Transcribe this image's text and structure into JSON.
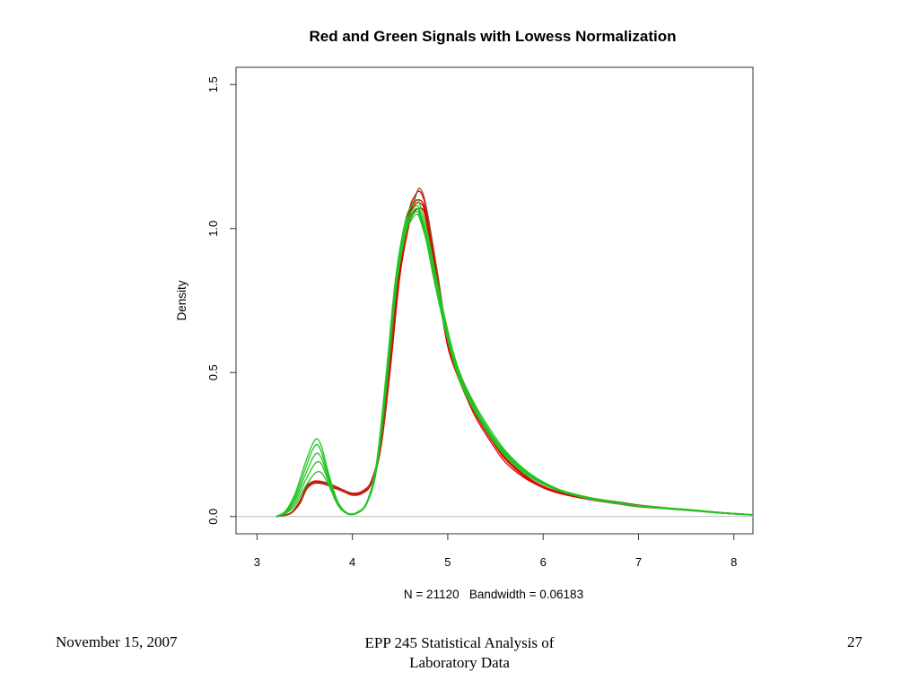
{
  "chart_data": {
    "type": "line",
    "title": "Red and Green Signals with Lowess Normalization",
    "xlabel": "N = 21120   Bandwidth = 0.06183",
    "ylabel": "Density",
    "xlim": [
      2.78,
      8.2
    ],
    "ylim": [
      -0.06,
      1.56
    ],
    "x_ticks": [
      "3",
      "4",
      "5",
      "6",
      "7",
      "8"
    ],
    "y_ticks": [
      "0.0",
      "0.5",
      "1.0",
      "1.5"
    ],
    "grid": false,
    "baseline": 0,
    "colors": {
      "red": "#e00000",
      "green": "#22c422",
      "brown": "#8a4a1e",
      "baseline": "#bdbdbd"
    },
    "series": [
      {
        "color": "red",
        "x": [
          3.2,
          3.35,
          3.45,
          3.52,
          3.6,
          3.7,
          3.8,
          3.9,
          4.0,
          4.1,
          4.2,
          4.3,
          4.4,
          4.5,
          4.6,
          4.65,
          4.7,
          4.75,
          4.8,
          4.9,
          5.0,
          5.1,
          5.2,
          5.3,
          5.45,
          5.6,
          5.8,
          6.0,
          6.2,
          6.5,
          6.8,
          7.0,
          7.3,
          7.6,
          7.9,
          8.2
        ],
        "y": [
          0.0,
          0.01,
          0.05,
          0.1,
          0.12,
          0.118,
          0.105,
          0.09,
          0.078,
          0.085,
          0.12,
          0.25,
          0.55,
          0.88,
          1.05,
          1.09,
          1.1,
          1.08,
          1.0,
          0.8,
          0.6,
          0.5,
          0.42,
          0.35,
          0.27,
          0.2,
          0.14,
          0.1,
          0.08,
          0.06,
          0.045,
          0.035,
          0.028,
          0.02,
          0.012,
          0.005
        ]
      },
      {
        "color": "red",
        "x": [
          3.2,
          3.35,
          3.45,
          3.52,
          3.6,
          3.7,
          3.8,
          3.9,
          4.0,
          4.1,
          4.2,
          4.3,
          4.4,
          4.5,
          4.6,
          4.65,
          4.7,
          4.75,
          4.8,
          4.9,
          5.0,
          5.1,
          5.2,
          5.3,
          5.45,
          5.6,
          5.8,
          6.0,
          6.2,
          6.5,
          6.8,
          7.0,
          7.3,
          7.6,
          7.9,
          8.2
        ],
        "y": [
          0.0,
          0.01,
          0.045,
          0.095,
          0.115,
          0.113,
          0.1,
          0.087,
          0.074,
          0.08,
          0.115,
          0.24,
          0.52,
          0.84,
          1.02,
          1.06,
          1.07,
          1.06,
          0.98,
          0.78,
          0.59,
          0.49,
          0.41,
          0.34,
          0.26,
          0.19,
          0.135,
          0.1,
          0.078,
          0.058,
          0.043,
          0.034,
          0.027,
          0.019,
          0.011,
          0.005
        ]
      },
      {
        "color": "red",
        "x": [
          3.2,
          3.35,
          3.45,
          3.52,
          3.6,
          3.7,
          3.8,
          3.9,
          4.0,
          4.1,
          4.2,
          4.3,
          4.4,
          4.5,
          4.6,
          4.65,
          4.7,
          4.75,
          4.8,
          4.9,
          5.0,
          5.1,
          5.2,
          5.3,
          5.45,
          5.6,
          5.8,
          6.0,
          6.2,
          6.5,
          6.8,
          7.0,
          7.3,
          7.6,
          7.9,
          8.2
        ],
        "y": [
          0.0,
          0.012,
          0.055,
          0.105,
          0.123,
          0.12,
          0.108,
          0.093,
          0.081,
          0.088,
          0.125,
          0.26,
          0.57,
          0.9,
          1.07,
          1.11,
          1.13,
          1.1,
          1.02,
          0.82,
          0.61,
          0.51,
          0.43,
          0.36,
          0.28,
          0.205,
          0.145,
          0.105,
          0.082,
          0.061,
          0.046,
          0.036,
          0.029,
          0.021,
          0.013,
          0.006
        ]
      },
      {
        "color": "red",
        "x": [
          3.2,
          3.35,
          3.45,
          3.52,
          3.6,
          3.7,
          3.8,
          3.9,
          4.0,
          4.1,
          4.2,
          4.3,
          4.4,
          4.5,
          4.6,
          4.65,
          4.7,
          4.75,
          4.8,
          4.9,
          5.0,
          5.1,
          5.2,
          5.3,
          5.45,
          5.6,
          5.8,
          6.0,
          6.2,
          6.5,
          6.8,
          7.0,
          7.3,
          7.6,
          7.9,
          8.2
        ],
        "y": [
          0.0,
          0.011,
          0.05,
          0.1,
          0.118,
          0.116,
          0.103,
          0.089,
          0.077,
          0.083,
          0.118,
          0.245,
          0.54,
          0.86,
          1.04,
          1.08,
          1.09,
          1.07,
          0.99,
          0.79,
          0.6,
          0.5,
          0.42,
          0.35,
          0.27,
          0.2,
          0.14,
          0.1,
          0.079,
          0.059,
          0.044,
          0.035,
          0.028,
          0.02,
          0.012,
          0.005
        ]
      },
      {
        "color": "brown",
        "x": [
          3.2,
          3.35,
          3.45,
          3.52,
          3.6,
          3.7,
          3.8,
          3.9,
          4.0,
          4.1,
          4.2,
          4.3,
          4.4,
          4.5,
          4.6,
          4.65,
          4.7,
          4.75,
          4.8,
          4.9,
          5.0,
          5.1,
          5.2,
          5.3,
          5.45,
          5.6,
          5.8,
          6.0,
          6.2,
          6.5,
          6.8,
          7.0,
          7.3,
          7.6,
          7.9,
          8.2
        ],
        "y": [
          0.0,
          0.01,
          0.05,
          0.1,
          0.12,
          0.117,
          0.104,
          0.09,
          0.078,
          0.085,
          0.12,
          0.25,
          0.56,
          0.89,
          1.06,
          1.1,
          1.14,
          1.11,
          1.03,
          0.83,
          0.62,
          0.52,
          0.44,
          0.37,
          0.29,
          0.22,
          0.16,
          0.12,
          0.09,
          0.065,
          0.05,
          0.04,
          0.03,
          0.022,
          0.013,
          0.006
        ]
      },
      {
        "color": "green",
        "x": [
          3.2,
          3.3,
          3.4,
          3.5,
          3.58,
          3.63,
          3.68,
          3.75,
          3.85,
          3.95,
          4.05,
          4.15,
          4.25,
          4.35,
          4.45,
          4.55,
          4.62,
          4.68,
          4.72,
          4.78,
          4.85,
          4.95,
          5.05,
          5.15,
          5.3,
          5.45,
          5.6,
          5.8,
          6.0,
          6.2,
          6.5,
          6.8,
          7.0,
          7.3,
          7.6,
          7.9,
          8.2
        ],
        "y": [
          0.0,
          0.02,
          0.08,
          0.18,
          0.25,
          0.27,
          0.24,
          0.15,
          0.05,
          0.012,
          0.015,
          0.05,
          0.18,
          0.48,
          0.82,
          1.02,
          1.08,
          1.1,
          1.07,
          1.0,
          0.88,
          0.72,
          0.58,
          0.48,
          0.38,
          0.3,
          0.23,
          0.165,
          0.12,
          0.09,
          0.065,
          0.048,
          0.038,
          0.03,
          0.022,
          0.013,
          0.006
        ]
      },
      {
        "color": "green",
        "x": [
          3.2,
          3.3,
          3.4,
          3.5,
          3.58,
          3.63,
          3.68,
          3.75,
          3.85,
          3.95,
          4.05,
          4.15,
          4.25,
          4.35,
          4.45,
          4.55,
          4.62,
          4.68,
          4.72,
          4.78,
          4.85,
          4.95,
          5.05,
          5.15,
          5.3,
          5.45,
          5.6,
          5.8,
          6.0,
          6.2,
          6.5,
          6.8,
          7.0,
          7.3,
          7.6,
          7.9,
          8.2
        ],
        "y": [
          0.0,
          0.018,
          0.07,
          0.16,
          0.23,
          0.25,
          0.22,
          0.14,
          0.048,
          0.011,
          0.014,
          0.048,
          0.17,
          0.46,
          0.8,
          1.0,
          1.06,
          1.08,
          1.05,
          0.98,
          0.86,
          0.71,
          0.57,
          0.47,
          0.37,
          0.29,
          0.225,
          0.16,
          0.118,
          0.088,
          0.063,
          0.047,
          0.037,
          0.029,
          0.021,
          0.012,
          0.005
        ]
      },
      {
        "color": "green",
        "x": [
          3.2,
          3.3,
          3.4,
          3.5,
          3.58,
          3.63,
          3.68,
          3.75,
          3.85,
          3.95,
          4.05,
          4.15,
          4.25,
          4.35,
          4.45,
          4.55,
          4.62,
          4.68,
          4.72,
          4.78,
          4.85,
          4.95,
          5.05,
          5.15,
          5.3,
          5.45,
          5.6,
          5.8,
          6.0,
          6.2,
          6.5,
          6.8,
          7.0,
          7.3,
          7.6,
          7.9,
          8.2
        ],
        "y": [
          0.0,
          0.015,
          0.06,
          0.14,
          0.2,
          0.22,
          0.2,
          0.13,
          0.045,
          0.01,
          0.013,
          0.046,
          0.165,
          0.45,
          0.79,
          0.99,
          1.05,
          1.07,
          1.04,
          0.97,
          0.85,
          0.7,
          0.56,
          0.46,
          0.365,
          0.285,
          0.22,
          0.158,
          0.116,
          0.087,
          0.062,
          0.046,
          0.036,
          0.028,
          0.02,
          0.012,
          0.005
        ]
      },
      {
        "color": "green",
        "x": [
          3.2,
          3.3,
          3.4,
          3.5,
          3.58,
          3.63,
          3.68,
          3.75,
          3.85,
          3.95,
          4.05,
          4.15,
          4.25,
          4.35,
          4.45,
          4.55,
          4.62,
          4.68,
          4.72,
          4.78,
          4.85,
          4.95,
          5.05,
          5.15,
          5.3,
          5.45,
          5.6,
          5.8,
          6.0,
          6.2,
          6.5,
          6.8,
          7.0,
          7.3,
          7.6,
          7.9,
          8.2
        ],
        "y": [
          0.0,
          0.012,
          0.05,
          0.12,
          0.17,
          0.19,
          0.18,
          0.12,
          0.04,
          0.009,
          0.012,
          0.045,
          0.16,
          0.44,
          0.78,
          0.98,
          1.04,
          1.06,
          1.03,
          0.96,
          0.84,
          0.69,
          0.555,
          0.455,
          0.36,
          0.28,
          0.215,
          0.155,
          0.114,
          0.086,
          0.061,
          0.045,
          0.035,
          0.027,
          0.019,
          0.011,
          0.005
        ]
      },
      {
        "color": "green",
        "x": [
          3.2,
          3.3,
          3.4,
          3.5,
          3.58,
          3.63,
          3.68,
          3.75,
          3.85,
          3.95,
          4.05,
          4.15,
          4.25,
          4.35,
          4.45,
          4.55,
          4.62,
          4.68,
          4.72,
          4.78,
          4.85,
          4.95,
          5.05,
          5.15,
          5.3,
          5.45,
          5.6,
          5.8,
          6.0,
          6.2,
          6.5,
          6.8,
          7.0,
          7.3,
          7.6,
          7.9,
          8.2
        ],
        "y": [
          0.0,
          0.01,
          0.04,
          0.1,
          0.14,
          0.155,
          0.15,
          0.11,
          0.038,
          0.009,
          0.012,
          0.044,
          0.155,
          0.43,
          0.77,
          0.97,
          1.03,
          1.05,
          1.02,
          0.95,
          0.83,
          0.68,
          0.55,
          0.45,
          0.355,
          0.275,
          0.21,
          0.15,
          0.112,
          0.085,
          0.06,
          0.044,
          0.035,
          0.027,
          0.019,
          0.011,
          0.005
        ]
      }
    ]
  },
  "footer": {
    "date": "November 15, 2007",
    "course_line1": "EPP 245 Statistical Analysis of",
    "course_line2": "Laboratory Data",
    "page": "27"
  }
}
